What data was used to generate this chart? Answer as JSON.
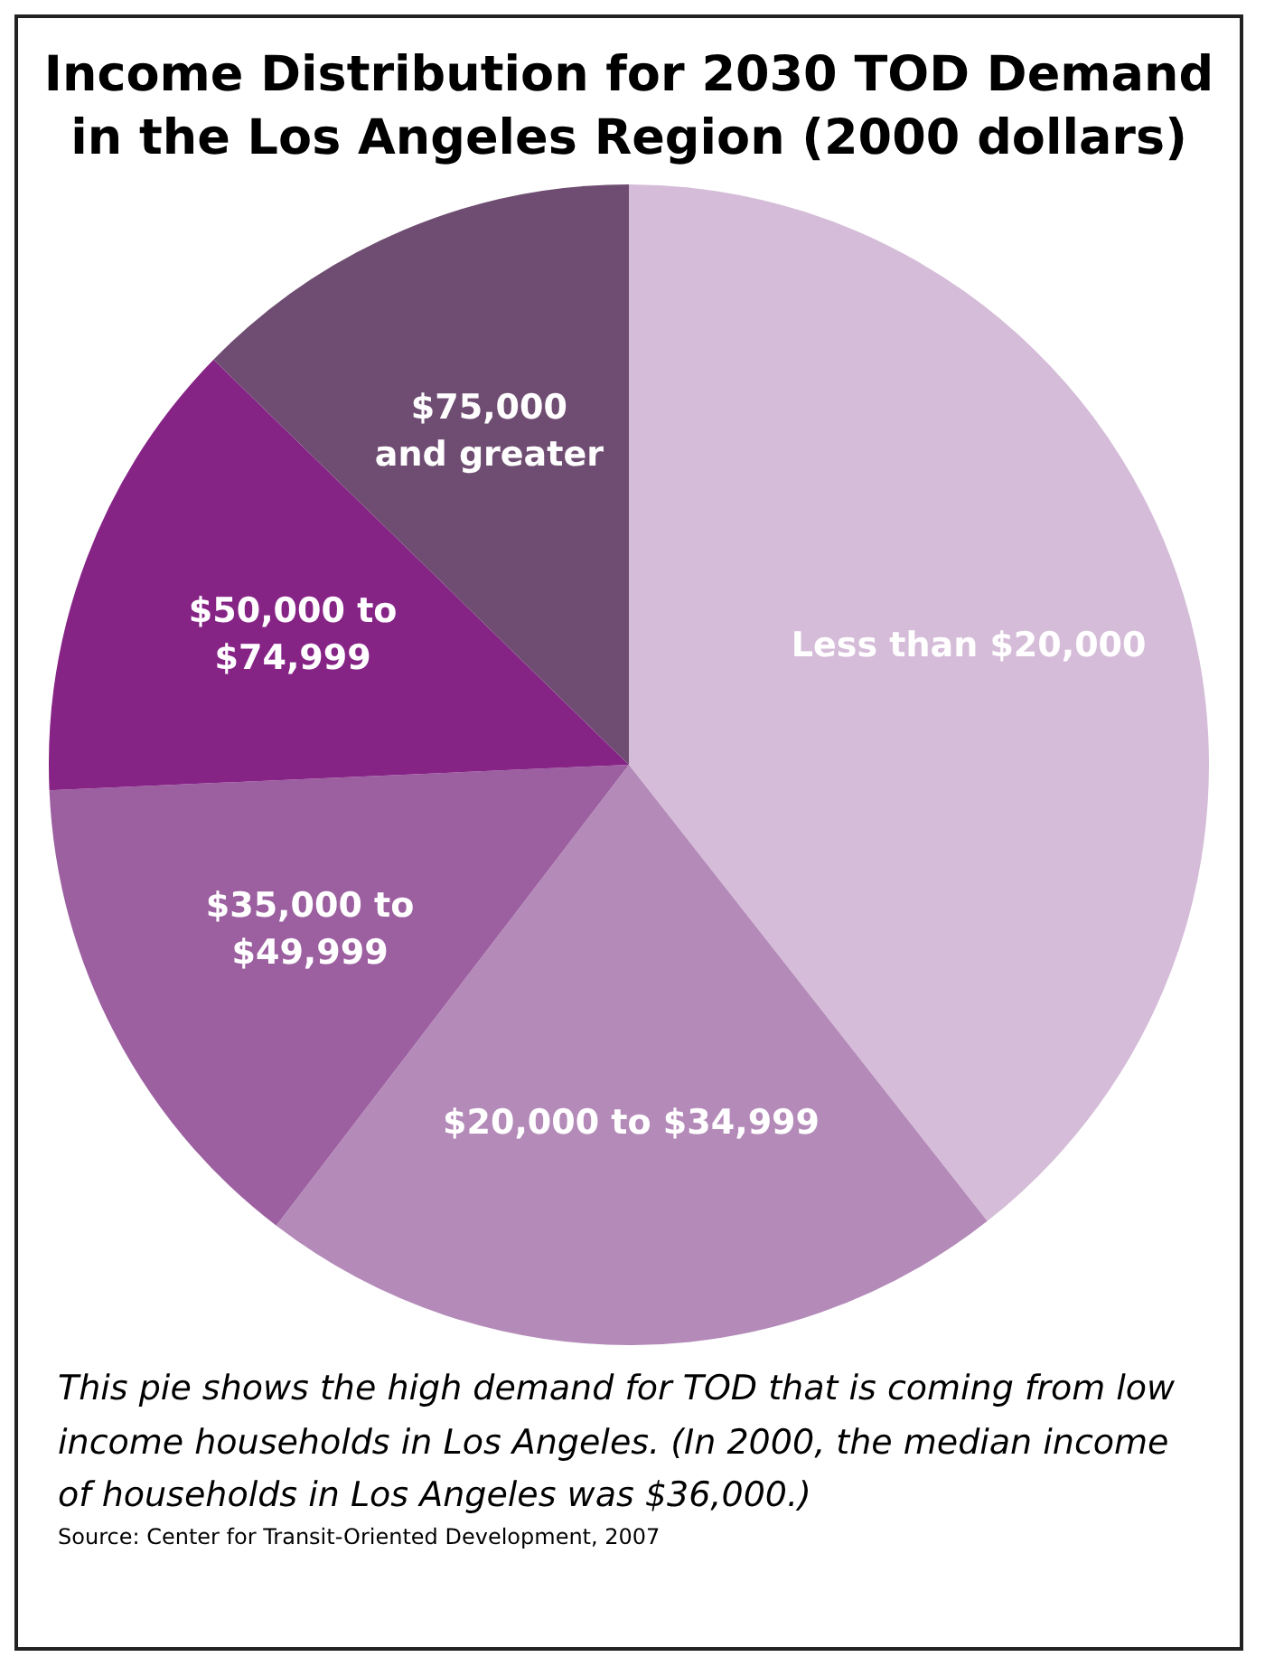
{
  "chart_data": {
    "type": "pie",
    "title": "Income Distribution for 2030 TOD Demand in the Los Angeles Region (2000 dollars)",
    "categories": [
      "Less than $20,000",
      "$20,000 to $34,999",
      "$35,000 to $49,999",
      "$50,000 to $74,999",
      "$75,000 and greater"
    ],
    "values": [
      39.4,
      21,
      13.9,
      13,
      12.7
    ],
    "colors": [
      "#d5bcd8",
      "#b48ab9",
      "#9c5fa0",
      "#862486",
      "#6f4d72"
    ],
    "annotations": [
      "This pie shows the high demand for TOD that is coming from low income households in Los Angeles.  (In 2000, the median income of households in Los Angeles was $36,000.)",
      "Source: Center for Transit-Oriented Development, 2007"
    ]
  }
}
